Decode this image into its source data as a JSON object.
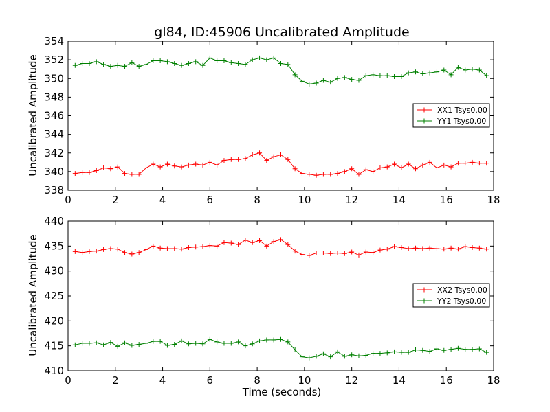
{
  "chart_data": [
    {
      "type": "line",
      "title": "gl84, ID:45906 Uncalibrated Amplitude",
      "xlabel": "",
      "ylabel": "Uncalibrated Amplitude",
      "xlim": [
        0,
        18
      ],
      "ylim": [
        338,
        354
      ],
      "xticks": [
        "0",
        "2",
        "4",
        "6",
        "8",
        "10",
        "12",
        "14",
        "16",
        "18"
      ],
      "yticks": [
        "338",
        "340",
        "342",
        "344",
        "346",
        "348",
        "350",
        "352",
        "354"
      ],
      "legend_position": "center-right",
      "x": [
        0.3,
        0.6,
        0.9,
        1.2,
        1.5,
        1.8,
        2.1,
        2.4,
        2.7,
        3.0,
        3.3,
        3.6,
        3.9,
        4.2,
        4.5,
        4.8,
        5.1,
        5.4,
        5.7,
        6.0,
        6.3,
        6.6,
        6.9,
        7.2,
        7.5,
        7.8,
        8.1,
        8.4,
        8.7,
        9.0,
        9.3,
        9.6,
        9.9,
        10.2,
        10.5,
        10.8,
        11.1,
        11.4,
        11.7,
        12.0,
        12.3,
        12.6,
        12.9,
        13.2,
        13.5,
        13.8,
        14.1,
        14.4,
        14.7,
        15.0,
        15.3,
        15.6,
        15.9,
        16.2,
        16.5,
        16.8,
        17.1,
        17.4,
        17.7
      ],
      "series": [
        {
          "name": "XX1 Tsys0.00",
          "color": "#ff0000",
          "values": [
            339.8,
            339.9,
            339.9,
            340.1,
            340.4,
            340.3,
            340.5,
            339.8,
            339.7,
            339.7,
            340.4,
            340.8,
            340.5,
            340.8,
            340.6,
            340.5,
            340.7,
            340.8,
            340.7,
            341.0,
            340.7,
            341.2,
            341.3,
            341.3,
            341.4,
            341.8,
            342.0,
            341.2,
            341.6,
            341.8,
            341.3,
            340.3,
            339.8,
            339.7,
            339.6,
            339.7,
            339.7,
            339.8,
            340.0,
            340.3,
            339.7,
            340.2,
            340.0,
            340.4,
            340.5,
            340.8,
            340.4,
            340.8,
            340.3,
            340.7,
            341.0,
            340.4,
            340.7,
            340.5,
            340.9,
            340.9,
            341.0,
            340.9,
            340.9
          ]
        },
        {
          "name": "YY1 Tsys0.00",
          "color": "#008000",
          "values": [
            351.4,
            351.6,
            351.6,
            351.8,
            351.5,
            351.3,
            351.4,
            351.3,
            351.7,
            351.3,
            351.5,
            351.9,
            351.9,
            351.8,
            351.6,
            351.4,
            351.6,
            351.8,
            351.4,
            352.2,
            351.9,
            351.9,
            351.7,
            351.6,
            351.5,
            352.0,
            352.2,
            352.0,
            352.2,
            351.6,
            351.5,
            350.4,
            349.7,
            349.4,
            349.5,
            349.8,
            349.6,
            350.0,
            350.1,
            349.9,
            349.8,
            350.3,
            350.4,
            350.3,
            350.3,
            350.2,
            350.2,
            350.6,
            350.7,
            350.5,
            350.6,
            350.7,
            350.9,
            350.4,
            351.2,
            350.9,
            351.0,
            350.9,
            350.3
          ]
        }
      ]
    },
    {
      "type": "line",
      "title": "",
      "xlabel": "Time (seconds)",
      "ylabel": "Uncalibrated Amplitude",
      "xlim": [
        0,
        18
      ],
      "ylim": [
        410,
        440
      ],
      "xticks": [
        "0",
        "2",
        "4",
        "6",
        "8",
        "10",
        "12",
        "14",
        "16",
        "18"
      ],
      "yticks": [
        "410",
        "415",
        "420",
        "425",
        "430",
        "435",
        "440"
      ],
      "legend_position": "center-right",
      "x": [
        0.3,
        0.6,
        0.9,
        1.2,
        1.5,
        1.8,
        2.1,
        2.4,
        2.7,
        3.0,
        3.3,
        3.6,
        3.9,
        4.2,
        4.5,
        4.8,
        5.1,
        5.4,
        5.7,
        6.0,
        6.3,
        6.6,
        6.9,
        7.2,
        7.5,
        7.8,
        8.1,
        8.4,
        8.7,
        9.0,
        9.3,
        9.6,
        9.9,
        10.2,
        10.5,
        10.8,
        11.1,
        11.4,
        11.7,
        12.0,
        12.3,
        12.6,
        12.9,
        13.2,
        13.5,
        13.8,
        14.1,
        14.4,
        14.7,
        15.0,
        15.3,
        15.6,
        15.9,
        16.2,
        16.5,
        16.8,
        17.1,
        17.4,
        17.7
      ],
      "series": [
        {
          "name": "XX2 Tsys0.00",
          "color": "#ff0000",
          "values": [
            433.9,
            433.7,
            433.9,
            434.0,
            434.3,
            434.5,
            434.4,
            433.7,
            433.4,
            433.7,
            434.3,
            435.0,
            434.6,
            434.5,
            434.5,
            434.4,
            434.7,
            434.8,
            434.9,
            435.1,
            435.0,
            435.7,
            435.6,
            435.3,
            436.2,
            435.7,
            436.1,
            435.0,
            435.9,
            436.3,
            435.3,
            434.0,
            433.3,
            433.1,
            433.6,
            433.6,
            433.5,
            433.6,
            433.5,
            433.8,
            433.2,
            433.8,
            433.7,
            434.2,
            434.4,
            434.9,
            434.7,
            434.5,
            434.6,
            434.5,
            434.6,
            434.5,
            434.4,
            434.6,
            434.4,
            434.9,
            434.7,
            434.6,
            434.4
          ]
        },
        {
          "name": "YY2 Tsys0.00",
          "color": "#008000",
          "values": [
            415.2,
            415.5,
            415.5,
            415.6,
            415.2,
            415.7,
            414.9,
            415.6,
            415.1,
            415.3,
            415.5,
            415.9,
            415.9,
            415.1,
            415.3,
            416.0,
            415.4,
            415.5,
            415.4,
            416.3,
            415.8,
            415.5,
            415.5,
            415.8,
            415.0,
            415.4,
            416.0,
            416.2,
            416.2,
            416.3,
            415.8,
            414.2,
            412.8,
            412.6,
            412.9,
            413.4,
            412.8,
            413.8,
            412.9,
            413.2,
            413.0,
            413.1,
            413.5,
            413.5,
            413.6,
            413.8,
            413.7,
            413.7,
            414.2,
            414.1,
            413.9,
            414.4,
            414.1,
            414.3,
            414.5,
            414.3,
            414.3,
            414.4,
            413.7
          ]
        }
      ]
    }
  ]
}
